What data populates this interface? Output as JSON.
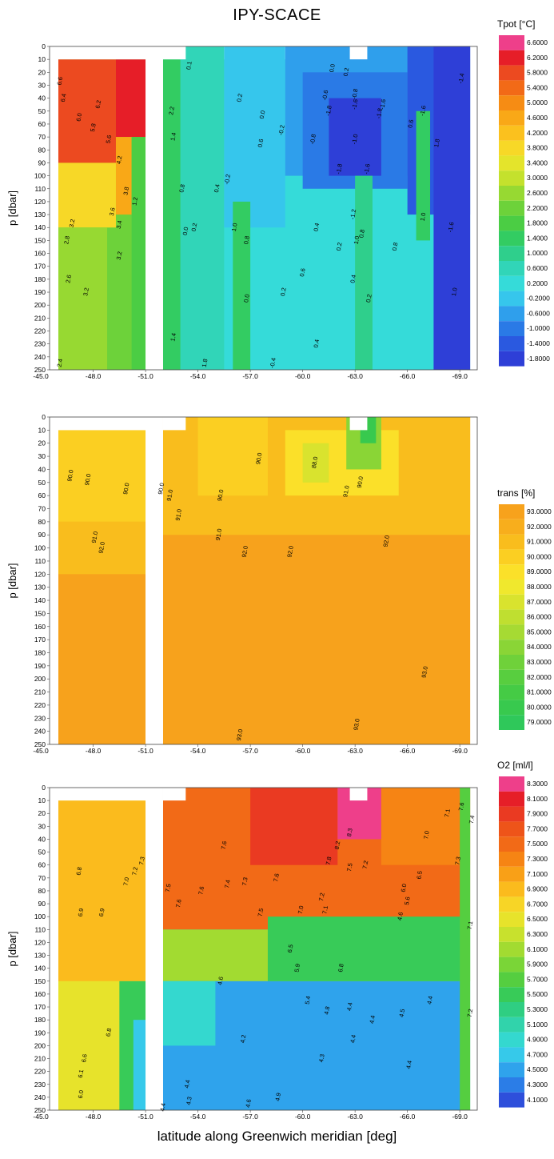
{
  "title": "IPY-SCACE",
  "xlabel": "latitude along Greenwich meridian [deg]",
  "chart_data": [
    {
      "type": "heatmap",
      "ylabel": "p [dbar]",
      "x_ticks": [
        "-45.0",
        "-48.0",
        "-51.0",
        "-54.0",
        "-57.0",
        "-60.0",
        "-63.0",
        "-66.0",
        "-69.0"
      ],
      "y_ticks": [
        "0",
        "10",
        "20",
        "30",
        "40",
        "50",
        "60",
        "70",
        "80",
        "90",
        "100",
        "110",
        "120",
        "130",
        "140",
        "150",
        "160",
        "170",
        "180",
        "190",
        "200",
        "210",
        "220",
        "230",
        "240",
        "250"
      ],
      "xlim": [
        -45.5,
        -70.0
      ],
      "ylim": [
        250,
        0
      ],
      "colorbar": {
        "title": "Tpot [°C]",
        "levels": [
          "6.6000",
          "6.2000",
          "5.8000",
          "5.4000",
          "5.0000",
          "4.6000",
          "4.2000",
          "3.8000",
          "3.4000",
          "3.0000",
          "2.6000",
          "2.2000",
          "1.8000",
          "1.4000",
          "1.0000",
          "0.6000",
          "0.2000",
          "-0.2000",
          "-0.6000",
          "-1.0000",
          "-1.4000",
          "-1.8000"
        ],
        "colors": [
          "#ee3f8a",
          "#e61e28",
          "#ec4a20",
          "#f26a17",
          "#f68c14",
          "#f9a817",
          "#fbc11e",
          "#f7d827",
          "#e4e42b",
          "#c4e12d",
          "#97d932",
          "#6dd23a",
          "#4bcd44",
          "#33cc62",
          "#2fcf8c",
          "#31d5b8",
          "#35dbd9",
          "#36c6ec",
          "#2f9fec",
          "#2a7ae6",
          "#2a59e0",
          "#2e3fd7"
        ]
      },
      "contour_labels": [
        {
          "text": "6.6",
          "x": -46.2,
          "y": 27
        },
        {
          "text": "6.4",
          "x": -46.4,
          "y": 40
        },
        {
          "text": "6.2",
          "x": -48.4,
          "y": 45
        },
        {
          "text": "6.0",
          "x": -47.3,
          "y": 55
        },
        {
          "text": "5.8",
          "x": -48.1,
          "y": 63
        },
        {
          "text": "5.6",
          "x": -49.0,
          "y": 72
        },
        {
          "text": "4.2",
          "x": -49.6,
          "y": 88
        },
        {
          "text": "3.8",
          "x": -50.0,
          "y": 112
        },
        {
          "text": "3.6",
          "x": -49.2,
          "y": 128
        },
        {
          "text": "3.4",
          "x": -49.6,
          "y": 138
        },
        {
          "text": "3.2",
          "x": -46.9,
          "y": 137
        },
        {
          "text": "2.8",
          "x": -46.6,
          "y": 150
        },
        {
          "text": "3.2",
          "x": -49.6,
          "y": 162
        },
        {
          "text": "2.6",
          "x": -46.7,
          "y": 180
        },
        {
          "text": "3.2",
          "x": -47.7,
          "y": 190
        },
        {
          "text": "1.2",
          "x": -50.5,
          "y": 120
        },
        {
          "text": "2.4",
          "x": -46.2,
          "y": 245
        },
        {
          "text": "2.2",
          "x": -52.6,
          "y": 50
        },
        {
          "text": "1.4",
          "x": -52.7,
          "y": 70
        },
        {
          "text": "0.1",
          "x": -53.6,
          "y": 15
        },
        {
          "text": "0.8",
          "x": -53.2,
          "y": 110
        },
        {
          "text": "0.4",
          "x": -55.2,
          "y": 110
        },
        {
          "text": "0.2",
          "x": -53.9,
          "y": 140
        },
        {
          "text": "0.0",
          "x": -53.4,
          "y": 143
        },
        {
          "text": "1.0",
          "x": -56.2,
          "y": 140
        },
        {
          "text": "0.8",
          "x": -56.9,
          "y": 150
        },
        {
          "text": "0.0",
          "x": -56.9,
          "y": 195
        },
        {
          "text": "1.4",
          "x": -52.7,
          "y": 225
        },
        {
          "text": "1.8",
          "x": -54.5,
          "y": 245
        },
        {
          "text": "0.2",
          "x": -56.5,
          "y": 40
        },
        {
          "text": "0.0",
          "x": -57.8,
          "y": 53
        },
        {
          "text": "-0.2",
          "x": -58.9,
          "y": 65
        },
        {
          "text": "0.6",
          "x": -57.7,
          "y": 75
        },
        {
          "text": "-0.2",
          "x": -55.8,
          "y": 103
        },
        {
          "text": "0.2",
          "x": -59.0,
          "y": 190
        },
        {
          "text": "0.6",
          "x": -60.1,
          "y": 175
        },
        {
          "text": "0.4",
          "x": -60.9,
          "y": 230
        },
        {
          "text": "-0.4",
          "x": -58.4,
          "y": 245
        },
        {
          "text": "0.4",
          "x": -63.0,
          "y": 180
        },
        {
          "text": "0.0",
          "x": -61.8,
          "y": 17
        },
        {
          "text": "0.2",
          "x": -62.6,
          "y": 20
        },
        {
          "text": "-0.6",
          "x": -61.4,
          "y": 38
        },
        {
          "text": "-0.8",
          "x": -63.1,
          "y": 37
        },
        {
          "text": "-1.6",
          "x": -63.1,
          "y": 45
        },
        {
          "text": "-1.8",
          "x": -61.6,
          "y": 50
        },
        {
          "text": "-1.6",
          "x": -64.7,
          "y": 45
        },
        {
          "text": "-1.8",
          "x": -64.5,
          "y": 52
        },
        {
          "text": "-0.8",
          "x": -60.7,
          "y": 72
        },
        {
          "text": "-1.0",
          "x": -63.1,
          "y": 72
        },
        {
          "text": "-1.8",
          "x": -62.2,
          "y": 95
        },
        {
          "text": "-1.6",
          "x": -63.8,
          "y": 95
        },
        {
          "text": "-1.2",
          "x": -63.0,
          "y": 130
        },
        {
          "text": "0.2",
          "x": -62.2,
          "y": 155
        },
        {
          "text": "0.4",
          "x": -60.9,
          "y": 140
        },
        {
          "text": "1.0",
          "x": -63.2,
          "y": 150
        },
        {
          "text": "0.8",
          "x": -63.5,
          "y": 145
        },
        {
          "text": "0.2",
          "x": -63.9,
          "y": 195
        },
        {
          "text": "0.8",
          "x": -65.4,
          "y": 155
        },
        {
          "text": "0.6",
          "x": -66.3,
          "y": 60
        },
        {
          "text": "1.8",
          "x": -67.8,
          "y": 75
        },
        {
          "text": "1.0",
          "x": -67.0,
          "y": 132
        },
        {
          "text": "-1.6",
          "x": -67.0,
          "y": 50
        },
        {
          "text": "-1.4",
          "x": -69.2,
          "y": 25
        },
        {
          "text": "-1.6",
          "x": -68.6,
          "y": 140
        },
        {
          "text": "1.0",
          "x": -68.8,
          "y": 190
        }
      ]
    },
    {
      "type": "heatmap",
      "ylabel": "p [dbar]",
      "x_ticks": [
        "-45.0",
        "-48.0",
        "-51.0",
        "-54.0",
        "-57.0",
        "-60.0",
        "-63.0",
        "-66.0",
        "-69.0"
      ],
      "y_ticks": [
        "0",
        "10",
        "20",
        "30",
        "40",
        "50",
        "60",
        "70",
        "80",
        "90",
        "100",
        "110",
        "120",
        "130",
        "140",
        "150",
        "160",
        "170",
        "180",
        "190",
        "200",
        "210",
        "220",
        "230",
        "240",
        "250"
      ],
      "xlim": [
        -45.5,
        -70.0
      ],
      "ylim": [
        250,
        0
      ],
      "colorbar": {
        "title": "trans [%]",
        "levels": [
          "93.0000",
          "92.0000",
          "91.0000",
          "90.0000",
          "89.0000",
          "88.0000",
          "87.0000",
          "86.0000",
          "85.0000",
          "84.0000",
          "83.0000",
          "82.0000",
          "81.0000",
          "80.0000",
          "79.0000"
        ],
        "colors": [
          "#f7a21c",
          "#f8ae1c",
          "#f9bd1d",
          "#fbcf22",
          "#fbe029",
          "#f0e82d",
          "#d9e32e",
          "#bfdf30",
          "#a6da33",
          "#8ad536",
          "#6fd13a",
          "#58ce3f",
          "#45cb45",
          "#38c94e",
          "#2fc85a"
        ]
      },
      "contour_labels": [
        {
          "text": "90.0",
          "x": -46.8,
          "y": 45
        },
        {
          "text": "90.0",
          "x": -47.8,
          "y": 48
        },
        {
          "text": "90.0",
          "x": -50.0,
          "y": 55
        },
        {
          "text": "91.0",
          "x": -48.2,
          "y": 92
        },
        {
          "text": "92.0",
          "x": -48.6,
          "y": 100
        },
        {
          "text": "90.0",
          "x": -52.0,
          "y": 55
        },
        {
          "text": "91.0",
          "x": -52.5,
          "y": 60
        },
        {
          "text": "91.0",
          "x": -53.0,
          "y": 75
        },
        {
          "text": "90.0",
          "x": -55.4,
          "y": 60
        },
        {
          "text": "91.0",
          "x": -55.3,
          "y": 90
        },
        {
          "text": "90.0",
          "x": -57.6,
          "y": 32
        },
        {
          "text": "92.0",
          "x": -56.8,
          "y": 103
        },
        {
          "text": "92.0",
          "x": -59.4,
          "y": 103
        },
        {
          "text": "88.0",
          "x": -60.8,
          "y": 35
        },
        {
          "text": "91.0",
          "x": -62.6,
          "y": 57
        },
        {
          "text": "90.0",
          "x": -63.4,
          "y": 50
        },
        {
          "text": "92.0",
          "x": -64.9,
          "y": 95
        },
        {
          "text": "93.0",
          "x": -67.1,
          "y": 195
        },
        {
          "text": "93.0",
          "x": -56.5,
          "y": 243
        },
        {
          "text": "93.0",
          "x": -63.2,
          "y": 235
        }
      ]
    },
    {
      "type": "heatmap",
      "ylabel": "p [dbar]",
      "x_ticks": [
        "-45.0",
        "-48.0",
        "-51.0",
        "-54.0",
        "-57.0",
        "-60.0",
        "-63.0",
        "-66.0",
        "-69.0"
      ],
      "y_ticks": [
        "0",
        "10",
        "20",
        "30",
        "40",
        "50",
        "60",
        "70",
        "80",
        "90",
        "100",
        "110",
        "120",
        "130",
        "140",
        "150",
        "160",
        "170",
        "180",
        "190",
        "200",
        "210",
        "220",
        "230",
        "240",
        "250"
      ],
      "xlim": [
        -45.5,
        -70.0
      ],
      "ylim": [
        250,
        0
      ],
      "colorbar": {
        "title": "O2 [ml/l]",
        "levels": [
          "8.3000",
          "8.1000",
          "7.9000",
          "7.7000",
          "7.5000",
          "7.3000",
          "7.1000",
          "6.9000",
          "6.7000",
          "6.5000",
          "6.3000",
          "6.1000",
          "5.9000",
          "5.7000",
          "5.5000",
          "5.3000",
          "5.1000",
          "4.9000",
          "4.7000",
          "4.5000",
          "4.3000",
          "4.1000"
        ],
        "colors": [
          "#ee3f8a",
          "#e61e28",
          "#ea3a22",
          "#ee5419",
          "#f26a17",
          "#f68414",
          "#f9a017",
          "#fbbb1d",
          "#f7d526",
          "#e7e32b",
          "#c8e12d",
          "#a2db31",
          "#7ad537",
          "#55ce40",
          "#38cb58",
          "#2fce82",
          "#31d3ab",
          "#34d8cf",
          "#36c9ea",
          "#2fa3ec",
          "#2b7de7",
          "#2e4fdb"
        ]
      },
      "contour_labels": [
        {
          "text": "6.8",
          "x": -47.3,
          "y": 65
        },
        {
          "text": "7.0",
          "x": -50.0,
          "y": 73
        },
        {
          "text": "7.2",
          "x": -50.5,
          "y": 65
        },
        {
          "text": "7.3",
          "x": -50.9,
          "y": 57
        },
        {
          "text": "6.9",
          "x": -47.4,
          "y": 97
        },
        {
          "text": "6.9",
          "x": -48.6,
          "y": 97
        },
        {
          "text": "6.8",
          "x": -49.0,
          "y": 190
        },
        {
          "text": "6.6",
          "x": -47.6,
          "y": 210
        },
        {
          "text": "6.1",
          "x": -47.4,
          "y": 222
        },
        {
          "text": "6.0",
          "x": -47.4,
          "y": 238
        },
        {
          "text": "7.5",
          "x": -52.4,
          "y": 78
        },
        {
          "text": "7.6",
          "x": -53.0,
          "y": 90
        },
        {
          "text": "7.6",
          "x": -54.3,
          "y": 80
        },
        {
          "text": "7.4",
          "x": -55.8,
          "y": 75
        },
        {
          "text": "7.3",
          "x": -56.8,
          "y": 73
        },
        {
          "text": "7.6",
          "x": -55.6,
          "y": 45
        },
        {
          "text": "7.5",
          "x": -57.7,
          "y": 97
        },
        {
          "text": "7.6",
          "x": -58.6,
          "y": 70
        },
        {
          "text": "7.2",
          "x": -61.2,
          "y": 85
        },
        {
          "text": "7.0",
          "x": -60.0,
          "y": 95
        },
        {
          "text": "7.1",
          "x": -61.4,
          "y": 95
        },
        {
          "text": "6.5",
          "x": -59.4,
          "y": 125
        },
        {
          "text": "5.9",
          "x": -59.8,
          "y": 140
        },
        {
          "text": "5.4",
          "x": -60.4,
          "y": 165
        },
        {
          "text": "4.8",
          "x": -61.5,
          "y": 173
        },
        {
          "text": "6.8",
          "x": -62.3,
          "y": 140
        },
        {
          "text": "4.3",
          "x": -61.2,
          "y": 210
        },
        {
          "text": "4.4",
          "x": -53.5,
          "y": 230
        },
        {
          "text": "4.3",
          "x": -53.6,
          "y": 243
        },
        {
          "text": "4.4",
          "x": -52.1,
          "y": 248
        },
        {
          "text": "4.2",
          "x": -56.7,
          "y": 195
        },
        {
          "text": "4.6",
          "x": -57.0,
          "y": 245
        },
        {
          "text": "4.9",
          "x": -58.7,
          "y": 240
        },
        {
          "text": "4.4",
          "x": -63.0,
          "y": 195
        },
        {
          "text": "4.4",
          "x": -64.1,
          "y": 180
        },
        {
          "text": "4.5",
          "x": -65.8,
          "y": 175
        },
        {
          "text": "4.4",
          "x": -67.4,
          "y": 165
        },
        {
          "text": "4.4",
          "x": -66.2,
          "y": 215
        },
        {
          "text": "4.6",
          "x": -65.7,
          "y": 100
        },
        {
          "text": "5.6",
          "x": -66.1,
          "y": 88
        },
        {
          "text": "6.0",
          "x": -65.9,
          "y": 78
        },
        {
          "text": "6.5",
          "x": -66.8,
          "y": 68
        },
        {
          "text": "7.0",
          "x": -67.2,
          "y": 37
        },
        {
          "text": "7.1",
          "x": -68.4,
          "y": 20
        },
        {
          "text": "7.3",
          "x": -69.0,
          "y": 57
        },
        {
          "text": "7.4",
          "x": -69.8,
          "y": 25
        },
        {
          "text": "7.6",
          "x": -69.2,
          "y": 15
        },
        {
          "text": "7.1",
          "x": -69.7,
          "y": 107
        },
        {
          "text": "7.2",
          "x": -69.7,
          "y": 175
        },
        {
          "text": "8.3",
          "x": -62.8,
          "y": 35
        },
        {
          "text": "8.2",
          "x": -62.1,
          "y": 45
        },
        {
          "text": "7.8",
          "x": -61.6,
          "y": 57
        },
        {
          "text": "7.5",
          "x": -62.8,
          "y": 62
        },
        {
          "text": "7.2",
          "x": -63.7,
          "y": 60
        },
        {
          "text": "4.4",
          "x": -62.8,
          "y": 170
        },
        {
          "text": "4.6",
          "x": -55.4,
          "y": 150
        }
      ]
    }
  ]
}
